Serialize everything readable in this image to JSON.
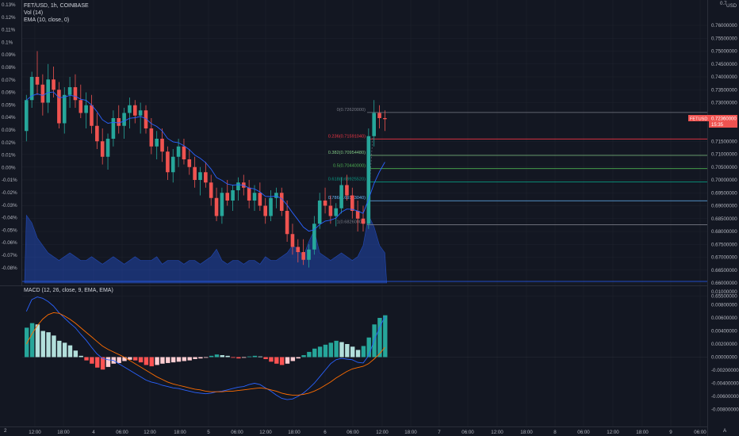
{
  "header": {
    "symbol": "FET/USD, 1h, COINBASE",
    "vol": "Vol (14)",
    "ema": "EMA (10, close, 0)",
    "macd": "MACD (12, 26, close, 9, EMA, EMA)",
    "currency": "USD"
  },
  "price_axis": {
    "labels": [
      "0.76000000",
      "0.75500000",
      "0.75000000",
      "0.74500000",
      "0.74000000",
      "0.73500000",
      "0.73000000",
      "0.71500000",
      "0.71000000",
      "0.70500000",
      "0.70000000",
      "0.69500000",
      "0.69000000",
      "0.68500000",
      "0.68000000",
      "0.67500000",
      "0.67000000",
      "0.66500000",
      "0.66000000",
      "0.65500000"
    ],
    "top_partial": "0.7",
    "symbol_badge": "FETUSD",
    "current_price": "0.72360000",
    "countdown": "15:35"
  },
  "pct_axis": {
    "labels": [
      "0.13%",
      "0.12%",
      "0.11%",
      "0.1%",
      "0.09%",
      "0.08%",
      "0.07%",
      "0.06%",
      "0.05%",
      "0.04%",
      "0.03%",
      "0.02%",
      "0.01%",
      "0.00%",
      "-0.01%",
      "-0.02%",
      "-0.03%",
      "-0.04%",
      "-0.05%",
      "-0.06%",
      "-0.07%",
      "-0.08%"
    ]
  },
  "macd_axis": {
    "labels": [
      "0.01000000",
      "0.00800000",
      "0.00600000",
      "0.00400000",
      "0.00200000",
      "0.00000000",
      "-0.00200000",
      "-0.00400000",
      "-0.00600000",
      "-0.00800000"
    ]
  },
  "time_axis": {
    "labels": [
      "12:00",
      "18:00",
      "4",
      "06:00",
      "12:00",
      "18:00",
      "5",
      "06:00",
      "12:00",
      "18:00",
      "6",
      "06:00",
      "12:00",
      "18:00",
      "7",
      "06:00",
      "12:00",
      "18:00",
      "8",
      "06:00",
      "12:00",
      "18:00",
      "9",
      "06:00"
    ]
  },
  "fib_levels": [
    {
      "label": "0(0.72620000)",
      "color": "#787b86"
    },
    {
      "label": "0.236(0.71591040)",
      "color": "#f23645"
    },
    {
      "label": "0.382(0.70954480)",
      "color": "#81c784"
    },
    {
      "label": "0.5(0.70440000)",
      "color": "#4caf50"
    },
    {
      "label": "0.618(0.69925520)",
      "color": "#089981"
    },
    {
      "label": "0.786(0.69193040)",
      "color": "#64b5f6"
    },
    {
      "label": "1(0.68260000)",
      "color": "#787b86"
    }
  ],
  "colors": {
    "bg": "#131722",
    "up": "#26a69a",
    "down": "#ef5350",
    "grid": "#1e222d",
    "ema": "#2962ff",
    "signal": "#ff6d00"
  },
  "chart_data": {
    "type": "candlestick",
    "candles": [
      [
        0.719,
        0.733,
        0.715,
        0.731
      ],
      [
        0.731,
        0.742,
        0.728,
        0.74
      ],
      [
        0.74,
        0.75,
        0.733,
        0.737
      ],
      [
        0.737,
        0.741,
        0.725,
        0.73
      ],
      [
        0.73,
        0.745,
        0.726,
        0.739
      ],
      [
        0.739,
        0.744,
        0.732,
        0.735
      ],
      [
        0.735,
        0.738,
        0.72,
        0.722
      ],
      [
        0.722,
        0.736,
        0.718,
        0.733
      ],
      [
        0.733,
        0.74,
        0.728,
        0.736
      ],
      [
        0.736,
        0.741,
        0.728,
        0.731
      ],
      [
        0.731,
        0.737,
        0.724,
        0.726
      ],
      [
        0.726,
        0.734,
        0.72,
        0.729
      ],
      [
        0.729,
        0.733,
        0.718,
        0.721
      ],
      [
        0.721,
        0.726,
        0.712,
        0.715
      ],
      [
        0.715,
        0.72,
        0.706,
        0.709
      ],
      [
        0.709,
        0.718,
        0.704,
        0.716
      ],
      [
        0.716,
        0.727,
        0.713,
        0.724
      ],
      [
        0.724,
        0.729,
        0.718,
        0.721
      ],
      [
        0.721,
        0.728,
        0.716,
        0.726
      ],
      [
        0.726,
        0.732,
        0.72,
        0.729
      ],
      [
        0.729,
        0.731,
        0.722,
        0.725
      ],
      [
        0.725,
        0.73,
        0.718,
        0.727
      ],
      [
        0.727,
        0.729,
        0.718,
        0.72
      ],
      [
        0.72,
        0.724,
        0.71,
        0.713
      ],
      [
        0.713,
        0.719,
        0.708,
        0.716
      ],
      [
        0.716,
        0.72,
        0.707,
        0.711
      ],
      [
        0.711,
        0.713,
        0.7,
        0.703
      ],
      [
        0.703,
        0.712,
        0.699,
        0.709
      ],
      [
        0.709,
        0.716,
        0.705,
        0.713
      ],
      [
        0.713,
        0.716,
        0.706,
        0.708
      ],
      [
        0.708,
        0.712,
        0.702,
        0.705
      ],
      [
        0.705,
        0.709,
        0.697,
        0.7
      ],
      [
        0.7,
        0.705,
        0.694,
        0.703
      ],
      [
        0.703,
        0.707,
        0.697,
        0.699
      ],
      [
        0.699,
        0.702,
        0.69,
        0.693
      ],
      [
        0.693,
        0.697,
        0.684,
        0.686
      ],
      [
        0.686,
        0.697,
        0.683,
        0.695
      ],
      [
        0.695,
        0.7,
        0.69,
        0.692
      ],
      [
        0.692,
        0.698,
        0.688,
        0.696
      ],
      [
        0.696,
        0.701,
        0.692,
        0.699
      ],
      [
        0.699,
        0.702,
        0.694,
        0.697
      ],
      [
        0.697,
        0.7,
        0.689,
        0.692
      ],
      [
        0.692,
        0.698,
        0.688,
        0.695
      ],
      [
        0.695,
        0.699,
        0.688,
        0.69
      ],
      [
        0.69,
        0.693,
        0.683,
        0.686
      ],
      [
        0.686,
        0.696,
        0.684,
        0.693
      ],
      [
        0.693,
        0.697,
        0.689,
        0.695
      ],
      [
        0.695,
        0.697,
        0.686,
        0.688
      ],
      [
        0.688,
        0.692,
        0.676,
        0.679
      ],
      [
        0.679,
        0.683,
        0.671,
        0.674
      ],
      [
        0.674,
        0.677,
        0.668,
        0.672
      ],
      [
        0.672,
        0.677,
        0.667,
        0.669
      ],
      [
        0.669,
        0.675,
        0.666,
        0.673
      ],
      [
        0.673,
        0.686,
        0.671,
        0.683
      ],
      [
        0.683,
        0.695,
        0.681,
        0.692
      ],
      [
        0.692,
        0.697,
        0.687,
        0.69
      ],
      [
        0.69,
        0.694,
        0.683,
        0.686
      ],
      [
        0.686,
        0.691,
        0.682,
        0.689
      ],
      [
        0.689,
        0.701,
        0.687,
        0.698
      ],
      [
        0.698,
        0.702,
        0.692,
        0.694
      ],
      [
        0.694,
        0.697,
        0.685,
        0.688
      ],
      [
        0.688,
        0.692,
        0.68,
        0.685
      ],
      [
        0.685,
        0.69,
        0.68,
        0.683
      ],
      [
        0.683,
        0.72,
        0.681,
        0.717
      ],
      [
        0.717,
        0.731,
        0.713,
        0.726
      ],
      [
        0.726,
        0.729,
        0.72,
        0.724
      ],
      [
        0.724,
        0.727,
        0.719,
        0.7236
      ]
    ],
    "volume": [
      0.9,
      0.8,
      0.6,
      0.5,
      0.4,
      0.35,
      0.3,
      0.35,
      0.4,
      0.35,
      0.3,
      0.3,
      0.35,
      0.3,
      0.25,
      0.3,
      0.35,
      0.3,
      0.25,
      0.3,
      0.35,
      0.3,
      0.3,
      0.3,
      0.35,
      0.25,
      0.3,
      0.3,
      0.3,
      0.25,
      0.3,
      0.3,
      0.25,
      0.3,
      0.35,
      0.45,
      0.3,
      0.25,
      0.3,
      0.3,
      0.25,
      0.3,
      0.3,
      0.25,
      0.35,
      0.3,
      0.3,
      0.35,
      0.4,
      0.5,
      0.45,
      0.35,
      0.55,
      0.7,
      0.4,
      0.35,
      0.3,
      0.35,
      0.4,
      0.35,
      0.3,
      0.35,
      0.5,
      0.9,
      0.75,
      0.5,
      0.4
    ],
    "macd_hist": [
      0.0045,
      0.0052,
      0.005,
      0.004,
      0.0038,
      0.0033,
      0.0025,
      0.0022,
      0.0018,
      0.001,
      0.0002,
      -0.0005,
      -0.001,
      -0.0016,
      -0.0019,
      -0.0015,
      -0.001,
      -0.0009,
      -0.0006,
      -0.0004,
      -0.0005,
      -0.0008,
      -0.0012,
      -0.0014,
      -0.0012,
      -0.001,
      -0.0009,
      -0.0008,
      -0.0007,
      -0.0006,
      -0.0005,
      -0.0003,
      -0.0002,
      -0.0001,
      0.0002,
      0.0004,
      0.0003,
      0.0002,
      -0.0001,
      -0.0002,
      -0.0001,
      0.0001,
      0.0002,
      0.0001,
      -0.0003,
      -0.0007,
      -0.001,
      -0.0012,
      -0.001,
      -0.0006,
      -0.0002,
      0.0003,
      0.0008,
      0.0013,
      0.0016,
      0.0019,
      0.0022,
      0.0025,
      0.0023,
      0.002,
      0.0016,
      0.0011,
      0.0017,
      0.003,
      0.005,
      0.006,
      0.0064
    ],
    "macd_line": [
      0.007,
      0.0088,
      0.0092,
      0.009,
      0.0085,
      0.0078,
      0.0068,
      0.006,
      0.0052,
      0.0045,
      0.0035,
      0.0026,
      0.0015,
      0.0005,
      -0.0002,
      -0.0004,
      -0.0005,
      -0.001,
      -0.0015,
      -0.002,
      -0.0025,
      -0.003,
      -0.0035,
      -0.0038,
      -0.004,
      -0.0043,
      -0.0045,
      -0.0047,
      -0.0048,
      -0.005,
      -0.0052,
      -0.0054,
      -0.0055,
      -0.0056,
      -0.0055,
      -0.0053,
      -0.0052,
      -0.005,
      -0.0048,
      -0.0046,
      -0.0045,
      -0.0042,
      -0.004,
      -0.0042,
      -0.0047,
      -0.0052,
      -0.0058,
      -0.0063,
      -0.0065,
      -0.0064,
      -0.006,
      -0.0055,
      -0.0048,
      -0.004,
      -0.003,
      -0.002,
      -0.001,
      -0.0004,
      -0.0002,
      -0.0003,
      -0.0004,
      -0.0008,
      -0.0009,
      0.0002,
      0.0025,
      0.0045,
      0.0062
    ],
    "signal_line": [
      0.002,
      0.0035,
      0.0048,
      0.0058,
      0.0065,
      0.0068,
      0.0067,
      0.0063,
      0.0058,
      0.0052,
      0.0045,
      0.0038,
      0.0031,
      0.0024,
      0.0017,
      0.0012,
      0.0008,
      0.0004,
      0.0,
      -0.0005,
      -0.001,
      -0.0015,
      -0.002,
      -0.0025,
      -0.003,
      -0.0034,
      -0.0038,
      -0.0041,
      -0.0043,
      -0.0045,
      -0.0047,
      -0.0049,
      -0.005,
      -0.0052,
      -0.0053,
      -0.0053,
      -0.0053,
      -0.0052,
      -0.0052,
      -0.0051,
      -0.005,
      -0.0049,
      -0.0048,
      -0.0047,
      -0.0048,
      -0.005,
      -0.0052,
      -0.0055,
      -0.0057,
      -0.0058,
      -0.0058,
      -0.0057,
      -0.0055,
      -0.0052,
      -0.0048,
      -0.0043,
      -0.0038,
      -0.0032,
      -0.0027,
      -0.0022,
      -0.0018,
      -0.0016,
      -0.0014,
      -0.001,
      -0.0003,
      0.0005,
      0.0015
    ]
  }
}
